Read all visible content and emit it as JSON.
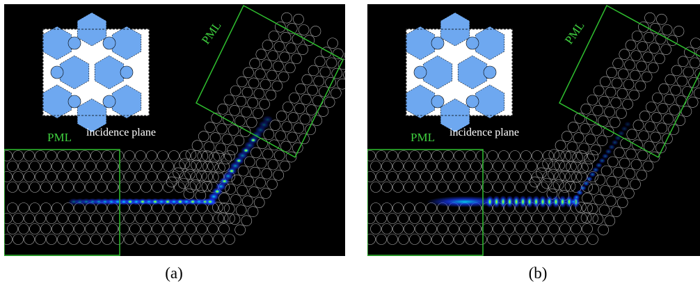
{
  "panels": [
    {
      "id": "a",
      "caption": "(a)",
      "pml_left": "PML",
      "pml_right": "PML",
      "incidence": "incidence plane",
      "field_style": "beaded"
    },
    {
      "id": "b",
      "caption": "(b)",
      "pml_left": "PML",
      "pml_right": "PML",
      "incidence": "incidence plane",
      "field_style": "resonant"
    }
  ],
  "colors": {
    "background": "#000000",
    "pml_box": "#2fbf2f",
    "lattice": "#d8d8d8",
    "inset_fill": "#6ea8f0",
    "field_core": "#00e0ff",
    "field_hot": "#ffd000",
    "field_glow": "#1a3cff"
  }
}
